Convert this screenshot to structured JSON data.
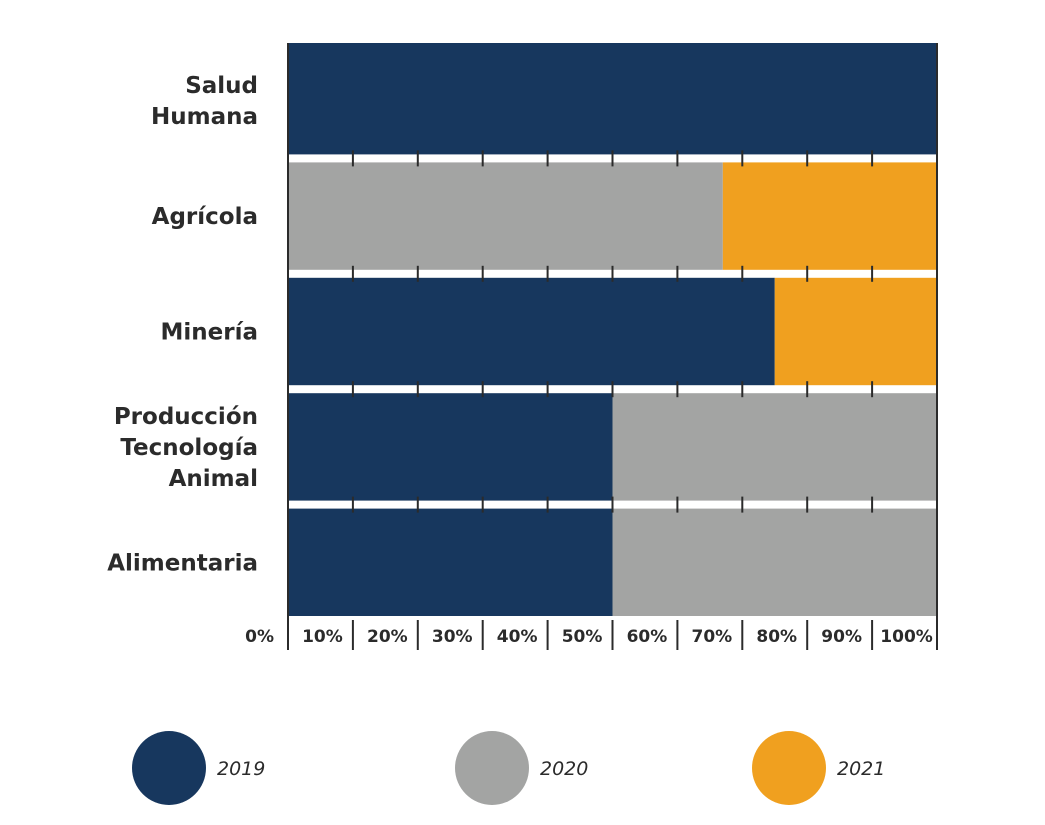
{
  "chart_data": {
    "type": "bar",
    "orientation": "horizontal",
    "stacked": true,
    "title": "",
    "xlabel": "",
    "ylabel": "",
    "xlim": [
      0,
      100
    ],
    "x_ticks": [
      0,
      10,
      20,
      30,
      40,
      50,
      60,
      70,
      80,
      90,
      100
    ],
    "x_tick_labels": [
      "0%",
      "10%",
      "20%",
      "30%",
      "40%",
      "50%",
      "60%",
      "70%",
      "80%",
      "90%",
      "100%"
    ],
    "categories": [
      {
        "id": "salud",
        "lines": [
          "Salud",
          "Humana"
        ]
      },
      {
        "id": "agricola",
        "lines": [
          "Agrícola"
        ]
      },
      {
        "id": "mineria",
        "lines": [
          "Minería"
        ]
      },
      {
        "id": "produccion",
        "lines": [
          "Producción",
          "Tecnología",
          "Animal"
        ]
      },
      {
        "id": "alimentaria",
        "lines": [
          "Alimentaria"
        ]
      }
    ],
    "series": [
      {
        "name": "2019",
        "color": "#17375e",
        "values": [
          100,
          0,
          75,
          50,
          50
        ]
      },
      {
        "name": "2020",
        "color": "#a3a4a3",
        "values": [
          0,
          67,
          0,
          50,
          50
        ]
      },
      {
        "name": "2021",
        "color": "#f0a01f",
        "values": [
          0,
          33,
          25,
          0,
          0
        ]
      }
    ],
    "legend_position": "bottom"
  }
}
